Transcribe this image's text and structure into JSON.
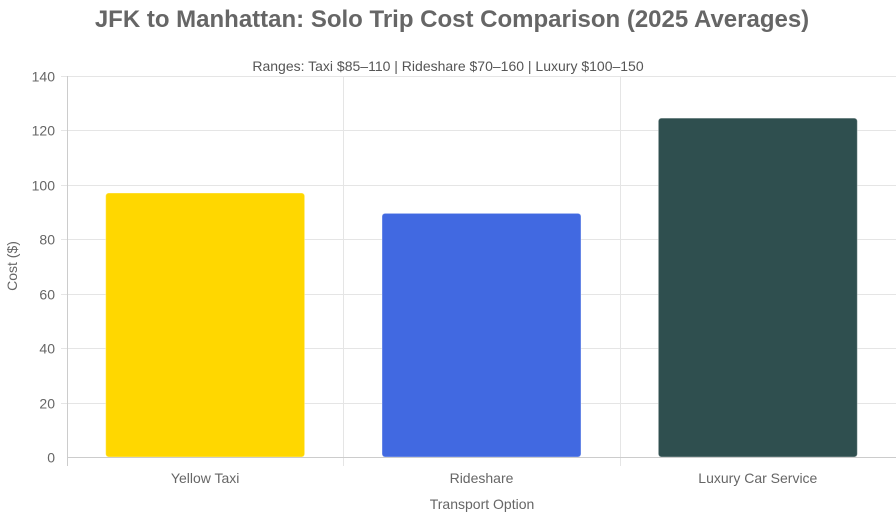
{
  "chart_data": {
    "type": "bar",
    "title": "JFK to Manhattan: Solo Trip Cost Comparison (2025 Averages)",
    "subtitle": "Ranges: Taxi $85–110 | Rideshare $70–160 | Luxury $100–150",
    "xlabel": "Transport Option",
    "ylabel": "Cost ($)",
    "categories": [
      "Yellow Taxi",
      "Rideshare",
      "Luxury Car Service"
    ],
    "values": [
      97,
      89.5,
      124.5
    ],
    "colors": [
      "#FFD700",
      "#4169E1",
      "#2F4F4F"
    ],
    "ylim": [
      0,
      140
    ],
    "yticks": [
      0,
      20,
      40,
      60,
      80,
      100,
      120,
      140
    ],
    "grid": true,
    "legend": "none"
  }
}
